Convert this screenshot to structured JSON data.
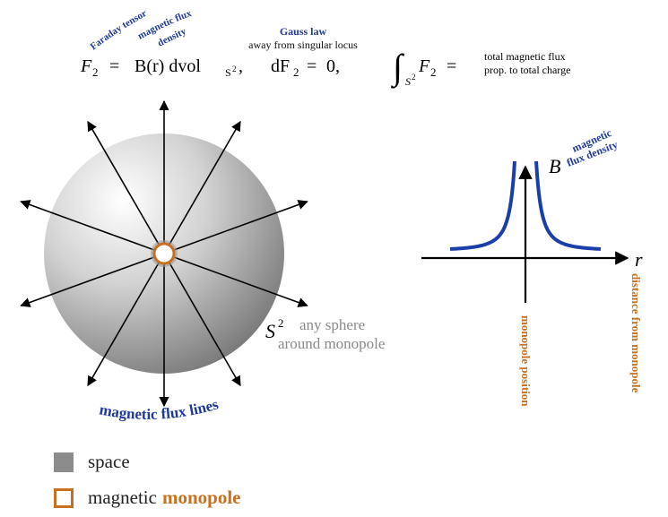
{
  "colors": {
    "blue": "#1f3a9a",
    "orange": "#c8701f",
    "gray_text": "#8a8a8a",
    "space_swatch": "#8c8c8c",
    "curve": "#1a3fa8"
  },
  "equations": {
    "faraday": {
      "annotation_1": "Faraday tensor",
      "annotation_2": "magnetic flux",
      "annotation_3": "density",
      "lhs": "F",
      "lhs_sub": "2",
      "eq": "=",
      "rhs": "B(r) dvol",
      "rhs_sub": "S",
      "rhs_sub_sup": "2",
      "tail": ","
    },
    "gauss": {
      "title": "Gauss law",
      "subtitle": "away from singular locus",
      "lhs": "dF",
      "lhs_sub": "2",
      "eq": "=",
      "rhs": "0,"
    },
    "integral": {
      "symbol": "∫",
      "domain": "S",
      "domain_sup": "2",
      "body": "F",
      "body_sub": "2",
      "eq": "=",
      "note_line1": "total magnetic flux",
      "note_line2": "prop. to total charge"
    }
  },
  "sphere": {
    "label": "S",
    "label_sup": "2",
    "note_line1": "any sphere",
    "note_line2": "around monopole",
    "flux_label": "magnetic flux lines"
  },
  "graph": {
    "y_label": "B",
    "x_label": "r",
    "curve_label_1": "magnetic",
    "curve_label_2": "flux density",
    "x_axis_note": "distance from monopole",
    "y_axis_note": "monopole position"
  },
  "legend": {
    "space": "space",
    "monopole_prefix": "magnetic",
    "monopole_word": "monopole"
  }
}
